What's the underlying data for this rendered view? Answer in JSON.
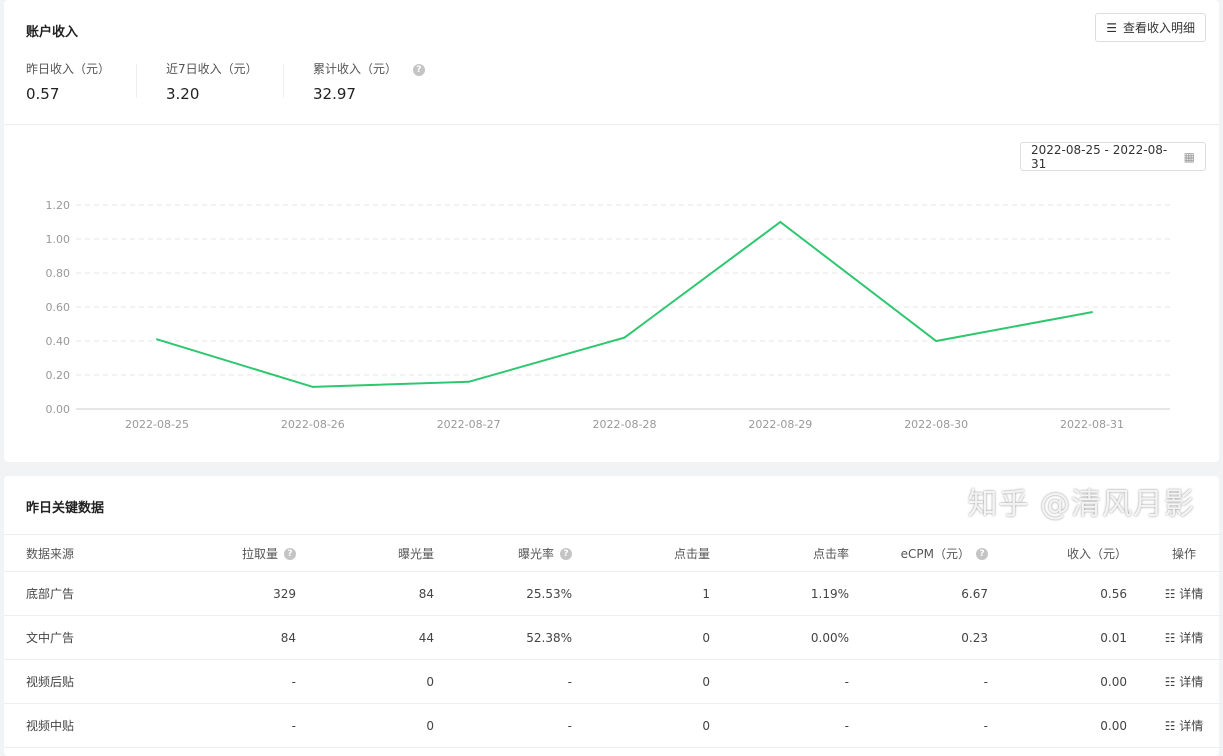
{
  "account": {
    "title": "账户收入",
    "detail_button": "查看收入明细",
    "stats": [
      {
        "label": "昨日收入（元）",
        "value": "0.57"
      },
      {
        "label": "近7日收入（元）",
        "value": "3.20"
      },
      {
        "label": "累计收入（元）",
        "value": "32.97",
        "help": true
      }
    ]
  },
  "date_range": "2022-08-25 - 2022-08-31",
  "chart_data": {
    "type": "line",
    "x": [
      "2022-08-25",
      "2022-08-26",
      "2022-08-27",
      "2022-08-28",
      "2022-08-29",
      "2022-08-30",
      "2022-08-31"
    ],
    "series": [
      {
        "values": [
          0.41,
          0.13,
          0.16,
          0.42,
          1.1,
          0.4,
          0.57
        ],
        "color": "#2ec770"
      }
    ],
    "yticks": [
      "0.00",
      "0.20",
      "0.40",
      "0.60",
      "0.80",
      "1.00",
      "1.20"
    ],
    "ylim": [
      0,
      1.2
    ],
    "grid": true
  },
  "key_data": {
    "title": "昨日关键数据",
    "columns": [
      "数据来源",
      "拉取量",
      "曝光量",
      "曝光率",
      "点击量",
      "点击率",
      "eCPM（元）",
      "收入（元）",
      "操作"
    ],
    "help_columns": [
      1,
      3,
      6
    ],
    "rows": [
      [
        "底部广告",
        "329",
        "84",
        "25.53%",
        "1",
        "1.19%",
        "6.67",
        "0.56"
      ],
      [
        "文中广告",
        "84",
        "44",
        "52.38%",
        "0",
        "0.00%",
        "0.23",
        "0.01"
      ],
      [
        "视频后贴",
        "-",
        "0",
        "-",
        "0",
        "-",
        "-",
        "0.00"
      ],
      [
        "视频中贴",
        "-",
        "0",
        "-",
        "0",
        "-",
        "-",
        "0.00"
      ]
    ],
    "action_label": "详情"
  },
  "watermark": "知乎 @清风月影"
}
